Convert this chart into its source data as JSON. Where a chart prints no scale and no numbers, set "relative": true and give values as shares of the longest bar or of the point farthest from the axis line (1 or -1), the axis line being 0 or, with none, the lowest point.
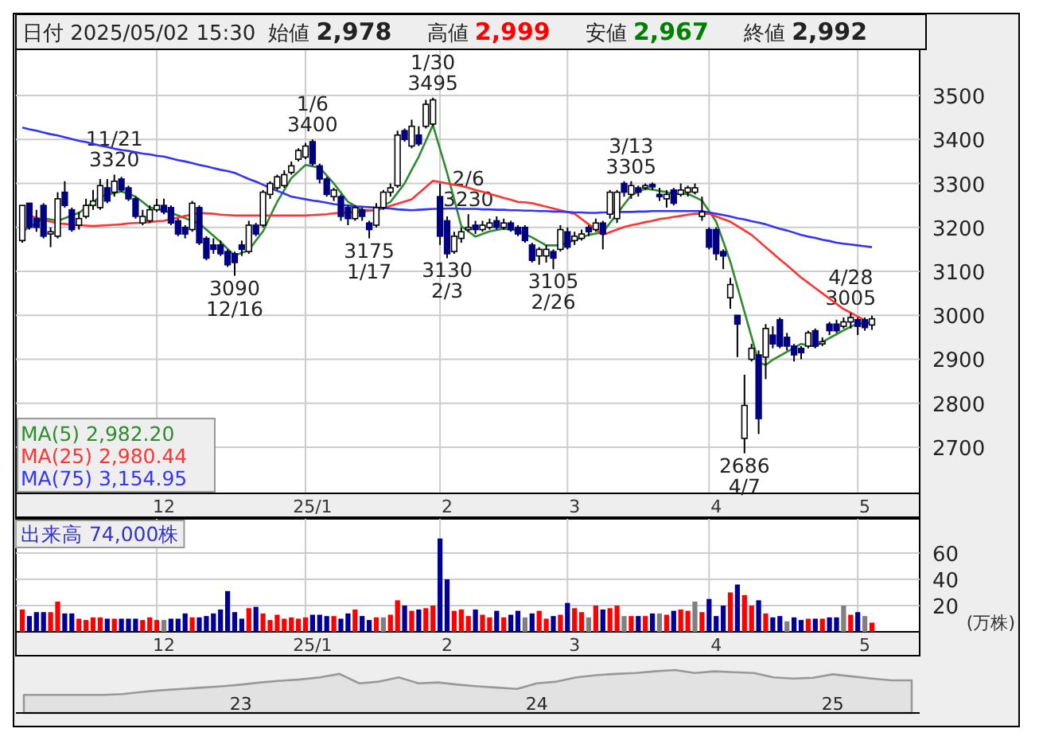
{
  "chart_data": [
    {
      "type": "candlestick",
      "title": "日付 2025/05/02 15:30",
      "annotations": [
        "始値 **2,978**",
        "高値 **2,999**",
        "安値 **2,967**",
        "終値 **2,992**"
      ],
      "categories": [
        null,
        null,
        null,
        null,
        null,
        null,
        null,
        null,
        null,
        null,
        null,
        null,
        null,
        null,
        null,
        null,
        null,
        null,
        null,
        null,
        "12",
        null,
        null,
        null,
        null,
        null,
        null,
        null,
        null,
        null,
        null,
        null,
        null,
        null,
        null,
        null,
        null,
        null,
        null,
        null,
        null,
        "25/1",
        null,
        null,
        null,
        null,
        null,
        null,
        null,
        null,
        null,
        null,
        null,
        null,
        null,
        null,
        null,
        null,
        null,
        null,
        "2",
        null,
        null,
        null,
        null,
        null,
        null,
        null,
        null,
        null,
        null,
        null,
        null,
        null,
        null,
        null,
        null,
        null,
        "3",
        null,
        null,
        null,
        null,
        null,
        null,
        null,
        null,
        null,
        null,
        null,
        null,
        null,
        null,
        null,
        null,
        null,
        null,
        null,
        "4",
        null,
        null,
        null,
        null,
        null,
        null,
        null,
        null,
        null,
        null,
        null,
        null,
        null,
        null,
        null,
        null,
        null,
        null,
        null,
        null,
        "5",
        null
      ],
      "ohlc": [
        [
          3170,
          3250,
          3165,
          3250
        ],
        [
          3255,
          3255,
          3195,
          3200
        ],
        [
          3220,
          3240,
          3190,
          3200
        ],
        [
          3250,
          3255,
          3175,
          3180
        ],
        [
          3185,
          3200,
          3155,
          3190
        ],
        [
          3180,
          3280,
          3175,
          3265
        ],
        [
          3280,
          3305,
          3245,
          3250
        ],
        [
          3240,
          3245,
          3190,
          3195
        ],
        [
          3205,
          3235,
          3195,
          3220
        ],
        [
          3225,
          3265,
          3220,
          3250
        ],
        [
          3250,
          3285,
          3240,
          3260
        ],
        [
          3245,
          3310,
          3240,
          3295
        ],
        [
          3290,
          3310,
          3255,
          3260
        ],
        [
          3280,
          3320,
          3270,
          3305
        ],
        [
          3310,
          3315,
          3280,
          3285
        ],
        [
          3290,
          3295,
          3260,
          3265
        ],
        [
          3265,
          3270,
          3220,
          3225
        ],
        [
          3210,
          3240,
          3205,
          3225
        ],
        [
          3215,
          3250,
          3210,
          3240
        ],
        [
          3240,
          3265,
          3235,
          3250
        ],
        [
          3250,
          3265,
          3230,
          3235
        ],
        [
          3245,
          3250,
          3205,
          3210
        ],
        [
          3215,
          3220,
          3180,
          3185
        ],
        [
          3200,
          3205,
          3175,
          3185
        ],
        [
          3195,
          3260,
          3190,
          3255
        ],
        [
          3245,
          3250,
          3160,
          3165
        ],
        [
          3175,
          3180,
          3125,
          3130
        ],
        [
          3160,
          3175,
          3140,
          3150
        ],
        [
          3160,
          3170,
          3135,
          3140
        ],
        [
          3145,
          3150,
          3110,
          3115
        ],
        [
          3140,
          3145,
          3090,
          3120
        ],
        [
          3160,
          3170,
          3135,
          3150
        ],
        [
          3145,
          3215,
          3140,
          3205
        ],
        [
          3205,
          3210,
          3180,
          3185
        ],
        [
          3205,
          3285,
          3200,
          3280
        ],
        [
          3275,
          3305,
          3265,
          3300
        ],
        [
          3290,
          3320,
          3285,
          3315
        ],
        [
          3295,
          3330,
          3290,
          3320
        ],
        [
          3325,
          3350,
          3320,
          3340
        ],
        [
          3355,
          3380,
          3350,
          3375
        ],
        [
          3360,
          3392,
          3355,
          3385
        ],
        [
          3395,
          3400,
          3340,
          3345
        ],
        [
          3340,
          3345,
          3300,
          3310
        ],
        [
          3310,
          3315,
          3270,
          3275
        ],
        [
          3270,
          3290,
          3260,
          3285
        ],
        [
          3270,
          3275,
          3215,
          3225
        ],
        [
          3245,
          3250,
          3205,
          3220
        ],
        [
          3220,
          3250,
          3215,
          3245
        ],
        [
          3240,
          3245,
          3215,
          3225
        ],
        [
          3210,
          3215,
          3175,
          3195
        ],
        [
          3205,
          3255,
          3200,
          3245
        ],
        [
          3245,
          3285,
          3240,
          3280
        ],
        [
          3280,
          3300,
          3270,
          3290
        ],
        [
          3295,
          3420,
          3290,
          3410
        ],
        [
          3420,
          3425,
          3395,
          3400
        ],
        [
          3385,
          3445,
          3380,
          3430
        ],
        [
          3410,
          3430,
          3385,
          3390
        ],
        [
          3430,
          3490,
          3425,
          3480
        ],
        [
          3435,
          3495,
          3430,
          3490
        ],
        [
          3270,
          3300,
          3160,
          3180
        ],
        [
          3215,
          3225,
          3130,
          3140
        ],
        [
          3145,
          3190,
          3140,
          3180
        ],
        [
          3175,
          3200,
          3165,
          3190
        ],
        [
          3195,
          3230,
          3190,
          3200
        ],
        [
          3205,
          3215,
          3185,
          3195
        ],
        [
          3195,
          3215,
          3190,
          3205
        ],
        [
          3200,
          3220,
          3195,
          3210
        ],
        [
          3215,
          3225,
          3195,
          3200
        ],
        [
          3200,
          3220,
          3195,
          3210
        ],
        [
          3210,
          3215,
          3190,
          3195
        ],
        [
          3200,
          3205,
          3180,
          3185
        ],
        [
          3200,
          3205,
          3165,
          3170
        ],
        [
          3160,
          3165,
          3120,
          3125
        ],
        [
          3135,
          3155,
          3115,
          3150
        ],
        [
          3135,
          3160,
          3120,
          3150
        ],
        [
          3145,
          3150,
          3105,
          3130
        ],
        [
          3150,
          3205,
          3145,
          3195
        ],
        [
          3190,
          3200,
          3150,
          3155
        ],
        [
          3170,
          3190,
          3160,
          3180
        ],
        [
          3175,
          3195,
          3170,
          3185
        ],
        [
          3200,
          3205,
          3180,
          3190
        ],
        [
          3195,
          3220,
          3190,
          3210
        ],
        [
          3210,
          3215,
          3150,
          3185
        ],
        [
          3230,
          3285,
          3220,
          3280
        ],
        [
          3220,
          3285,
          3210,
          3280
        ],
        [
          3300,
          3305,
          3270,
          3280
        ],
        [
          3275,
          3305,
          3265,
          3295
        ],
        [
          3290,
          3295,
          3270,
          3280
        ],
        [
          3290,
          3300,
          3285,
          3295
        ],
        [
          3298,
          3302,
          3285,
          3292
        ],
        [
          3275,
          3290,
          3260,
          3270
        ],
        [
          3265,
          3285,
          3245,
          3275
        ],
        [
          3285,
          3290,
          3250,
          3255
        ],
        [
          3275,
          3300,
          3270,
          3285
        ],
        [
          3280,
          3295,
          3270,
          3290
        ],
        [
          3280,
          3300,
          3275,
          3290
        ],
        [
          3225,
          3270,
          3215,
          3235
        ],
        [
          3195,
          3200,
          3150,
          3155
        ],
        [
          3195,
          3200,
          3125,
          3140
        ],
        [
          3145,
          3150,
          3105,
          3135
        ],
        [
          3040,
          3085,
          3015,
          3070
        ],
        [
          3000,
          3000,
          2905,
          2980
        ],
        [
          2720,
          2865,
          2686,
          2795
        ],
        [
          2900,
          2935,
          2895,
          2925
        ],
        [
          2910,
          2920,
          2730,
          2765
        ],
        [
          2905,
          2980,
          2855,
          2970
        ],
        [
          2955,
          2975,
          2925,
          2935
        ],
        [
          2990,
          2995,
          2925,
          2930
        ],
        [
          2950,
          2960,
          2920,
          2930
        ],
        [
          2930,
          2935,
          2895,
          2910
        ],
        [
          2925,
          2930,
          2900,
          2915
        ],
        [
          2930,
          2965,
          2925,
          2960
        ],
        [
          2965,
          2970,
          2925,
          2930
        ],
        [
          2935,
          2950,
          2930,
          2940
        ],
        [
          2980,
          2985,
          2955,
          2965
        ],
        [
          2980,
          2990,
          2960,
          2965
        ],
        [
          2975,
          2995,
          2970,
          2985
        ],
        [
          2985,
          3005,
          2970,
          2995
        ],
        [
          2990,
          2995,
          2955,
          2975
        ],
        [
          2990,
          2995,
          2965,
          2972
        ],
        [
          2978,
          2999,
          2967,
          2992
        ]
      ],
      "value_labels": [
        null,
        null,
        null,
        null,
        null,
        null,
        null,
        null,
        null,
        null,
        null,
        null,
        null,
        "11/21\n3320",
        null,
        null,
        null,
        null,
        null,
        null,
        null,
        null,
        null,
        null,
        null,
        null,
        null,
        null,
        null,
        null,
        "3090\n12/16",
        null,
        null,
        null,
        null,
        null,
        null,
        null,
        null,
        null,
        null,
        "1/6\n3400",
        null,
        null,
        null,
        null,
        null,
        null,
        null,
        "3175\n1/17",
        null,
        null,
        null,
        null,
        null,
        null,
        null,
        null,
        "1/30\n3495",
        null,
        "3130\n2/3",
        null,
        null,
        "2/6\n3230",
        null,
        null,
        null,
        null,
        null,
        null,
        null,
        null,
        null,
        null,
        null,
        "3105\n2/26",
        null,
        null,
        null,
        null,
        null,
        null,
        null,
        null,
        null,
        null,
        "3/13\n3305",
        null,
        null,
        null,
        null,
        null,
        null,
        null,
        null,
        null,
        null,
        null,
        null,
        null,
        null,
        null,
        "2686\n4/7",
        null,
        null,
        null,
        null,
        null,
        null,
        null,
        null,
        null,
        null,
        null,
        null,
        null,
        null,
        "4/28\n3005",
        null,
        null,
        null
      ],
      "series": [
        {
          "name": "MA(5)      2,982.20",
          "type": "line",
          "color": "#2e8b2e",
          "values": [
            3191,
            3200,
            3210,
            3221,
            3218,
            3215,
            3221,
            3227,
            3233,
            3245,
            3258,
            3270,
            3274,
            3278,
            3282,
            3276,
            3270,
            3258,
            3245,
            3242,
            3239,
            3233,
            3227,
            3221,
            3215,
            3209,
            3195,
            3181,
            3167,
            3151,
            3136,
            3142,
            3148,
            3170,
            3191,
            3225,
            3258,
            3285,
            3312,
            3327,
            3342,
            3339,
            3336,
            3318,
            3300,
            3279,
            3258,
            3249,
            3239,
            3239,
            3239,
            3249,
            3258,
            3279,
            3300,
            3331,
            3361,
            3397,
            3433,
            3378,
            3324,
            3264,
            3203,
            3191,
            3179,
            3185,
            3191,
            3194,
            3197,
            3195,
            3193,
            3185,
            3177,
            3168,
            3159,
            3159,
            3159,
            3165,
            3171,
            3177,
            3183,
            3186,
            3189,
            3210,
            3231,
            3252,
            3273,
            3281,
            3288,
            3286,
            3283,
            3280,
            3276,
            3276,
            3276,
            3269,
            3261,
            3237,
            3213,
            3168,
            3122,
            3065,
            3008,
            2951,
            2893,
            2887,
            2899,
            2908,
            2917,
            2926,
            2935,
            2932,
            2929,
            2939,
            2948,
            2957,
            2966,
            2974,
            2981,
            2982,
            2982
          ]
        },
        {
          "name": "MA(25)    2,980.44",
          "type": "line",
          "color": "#ff3333",
          "values": [
            null,
            3226,
            3222,
            3217,
            3213,
            3209,
            3208,
            3206,
            3205,
            3204,
            3203,
            3204,
            3205,
            3206,
            3207,
            3209,
            3210,
            3211,
            3212,
            3214,
            3215,
            3219,
            3222,
            3226,
            3229,
            3233,
            3232,
            3231,
            3229,
            3228,
            3227,
            3227,
            3227,
            3227,
            3227,
            3227,
            3227,
            3227,
            3227,
            3227,
            3227,
            3228,
            3229,
            3230,
            3232,
            3233,
            3234,
            3235,
            3236,
            3238,
            3239,
            3244,
            3249,
            3254,
            3259,
            3264,
            3278,
            3292,
            3306,
            3303,
            3300,
            3297,
            3294,
            3290,
            3285,
            3281,
            3276,
            3272,
            3267,
            3263,
            3258,
            3257,
            3255,
            3251,
            3247,
            3243,
            3239,
            3235,
            3231,
            3219,
            3207,
            3195,
            3183,
            3189,
            3195,
            3201,
            3205,
            3208,
            3212,
            3215,
            3219,
            3221,
            3224,
            3226,
            3229,
            3231,
            3231,
            3231,
            3225,
            3219,
            3213,
            3203,
            3193,
            3183,
            3169,
            3155,
            3141,
            3127,
            3114,
            3100,
            3086,
            3074,
            3062,
            3050,
            3038,
            3026,
            3014,
            3006,
            2997,
            2989,
            2980
          ]
        },
        {
          "name": "MA(75)    3,154.95",
          "type": "line",
          "color": "#3333ff",
          "values": [
            3427,
            3423,
            3420,
            3416,
            3412,
            3409,
            3405,
            3401,
            3397,
            3394,
            3390,
            3386,
            3383,
            3379,
            3376,
            3374,
            3371,
            3368,
            3366,
            3363,
            3361,
            3357,
            3353,
            3350,
            3346,
            3342,
            3339,
            3335,
            3331,
            3328,
            3324,
            3317,
            3310,
            3304,
            3297,
            3290,
            3283,
            3277,
            3270,
            3267,
            3264,
            3261,
            3259,
            3256,
            3253,
            3251,
            3250,
            3248,
            3247,
            3246,
            3245,
            3244,
            3243,
            3241,
            3240,
            3239,
            3240,
            3241,
            3242,
            3242,
            3243,
            3243,
            3242,
            3242,
            3242,
            3241,
            3241,
            3240,
            3240,
            3239,
            3239,
            3238,
            3238,
            3237,
            3237,
            3236,
            3236,
            3235,
            3234,
            3234,
            3233,
            3233,
            3234,
            3234,
            3235,
            3235,
            3235,
            3236,
            3236,
            3237,
            3237,
            3237,
            3237,
            3237,
            3237,
            3237,
            3237,
            3234,
            3231,
            3228,
            3225,
            3221,
            3218,
            3214,
            3211,
            3207,
            3202,
            3197,
            3193,
            3188,
            3183,
            3179,
            3176,
            3172,
            3169,
            3165,
            3163,
            3161,
            3159,
            3157,
            3155
          ]
        }
      ],
      "ylim": [
        2595,
        3605
      ],
      "yticks": [
        2700,
        2800,
        2900,
        3000,
        3100,
        3200,
        3300,
        3400,
        3500
      ],
      "grid": true,
      "legend": "bottom left"
    },
    {
      "type": "bar",
      "annotations": [
        "出来高 74,000株"
      ],
      "ylabel": "(万株)",
      "categories": [
        null,
        null,
        null,
        null,
        null,
        null,
        null,
        null,
        null,
        null,
        null,
        null,
        null,
        null,
        null,
        null,
        null,
        null,
        null,
        null,
        "12",
        null,
        null,
        null,
        null,
        null,
        null,
        null,
        null,
        null,
        null,
        null,
        null,
        null,
        null,
        null,
        null,
        null,
        null,
        null,
        null,
        "25/1",
        null,
        null,
        null,
        null,
        null,
        null,
        null,
        null,
        null,
        null,
        null,
        null,
        null,
        null,
        null,
        null,
        null,
        null,
        "2",
        null,
        null,
        null,
        null,
        null,
        null,
        null,
        null,
        null,
        null,
        null,
        null,
        null,
        null,
        null,
        null,
        null,
        "3",
        null,
        null,
        null,
        null,
        null,
        null,
        null,
        null,
        null,
        null,
        null,
        null,
        null,
        null,
        null,
        null,
        null,
        null,
        null,
        "4",
        null,
        null,
        null,
        null,
        null,
        null,
        null,
        null,
        null,
        null,
        null,
        null,
        null,
        null,
        null,
        null,
        null,
        null,
        null,
        null,
        "5",
        null
      ],
      "values": [
        17,
        12,
        15,
        15,
        15,
        23,
        14,
        14,
        10,
        9,
        11,
        11,
        10,
        10,
        10,
        10,
        10,
        9,
        11,
        9,
        9,
        10,
        10,
        14,
        11,
        11,
        12,
        14,
        17,
        31,
        15,
        10,
        18,
        19,
        14,
        9,
        13,
        10,
        11,
        10,
        11,
        13,
        13,
        12,
        12,
        10,
        14,
        17,
        12,
        9,
        11,
        11,
        13,
        24,
        20,
        16,
        17,
        18,
        20,
        71,
        40,
        16,
        17,
        12,
        17,
        13,
        11,
        16,
        11,
        13,
        16,
        11,
        14,
        16,
        10,
        12,
        13,
        22,
        18,
        15,
        11,
        20,
        17,
        18,
        20,
        12,
        12,
        12,
        12,
        14,
        14,
        13,
        16,
        17,
        16,
        23,
        15,
        25,
        12,
        20,
        30,
        36,
        28,
        20,
        24,
        14,
        11,
        12,
        8,
        11,
        9,
        10,
        10,
        10,
        11,
        11,
        20,
        13,
        15,
        12,
        7
      ],
      "colors": [
        "#ff0000",
        "#000099",
        "#000099",
        "#000099",
        "#ff0000",
        "#ff0000",
        "#000099",
        "#000099",
        "#ff0000",
        "#ff0000",
        "#ff0000",
        "#ff0000",
        "#000099",
        "#ff0000",
        "#000099",
        "#000099",
        "#000099",
        "#ff0000",
        "#ff0000",
        "#ff0000",
        "#808080",
        "#000099",
        "#000099",
        "#000099",
        "#ff0000",
        "#000099",
        "#000099",
        "#000099",
        "#000099",
        "#000099",
        "#000099",
        "#000099",
        "#ff0000",
        "#000099",
        "#ff0000",
        "#ff0000",
        "#ff0000",
        "#ff0000",
        "#ff0000",
        "#ff0000",
        "#ff0000",
        "#000099",
        "#000099",
        "#000099",
        "#ff0000",
        "#000099",
        "#000099",
        "#ff0000",
        "#000099",
        "#000099",
        "#ff0000",
        "#808080",
        "#ff0000",
        "#ff0000",
        "#000099",
        "#ff0000",
        "#000099",
        "#ff0000",
        "#ff0000",
        "#000099",
        "#000099",
        "#ff0000",
        "#ff0000",
        "#ff0000",
        "#000099",
        "#ff0000",
        "#ff0000",
        "#000099",
        "#ff0000",
        "#000099",
        "#000099",
        "#808080",
        "#000099",
        "#ff0000",
        "#ff0000",
        "#000099",
        "#ff0000",
        "#000099",
        "#ff0000",
        "#ff0000",
        "#808080",
        "#ff0000",
        "#000099",
        "#ff0000",
        "#ff0000",
        "#808080",
        "#ff0000",
        "#000099",
        "#ff0000",
        "#000099",
        "#808080",
        "#ff0000",
        "#000099",
        "#ff0000",
        "#ff0000",
        "#808080",
        "#ff0000",
        "#000099",
        "#000099",
        "#000099",
        "#ff0000",
        "#000099",
        "#ff0000",
        "#ff0000",
        "#000099",
        "#ff0000",
        "#000099",
        "#000099",
        "#808080",
        "#000099",
        "#000099",
        "#ff0000",
        "#000099",
        "#ff0000",
        "#000099",
        "#000099",
        "#808080",
        "#ff0000",
        "#000099",
        "#808080",
        "#ff0000"
      ],
      "ylim": [
        0,
        86
      ],
      "yticks": [
        20,
        40,
        60
      ],
      "grid": true
    },
    {
      "type": "area",
      "relative": true,
      "color": "#999999",
      "categories": [
        null,
        null,
        null,
        null,
        null,
        null,
        null,
        null,
        null,
        null,
        null,
        "23",
        null,
        null,
        null,
        null,
        null,
        null,
        null,
        null,
        null,
        null,
        null,
        null,
        null,
        null,
        "24",
        null,
        null,
        null,
        null,
        null,
        null,
        null,
        null,
        null,
        null,
        null,
        null,
        null,
        null,
        "25",
        null,
        null,
        null,
        null
      ],
      "values": [
        0.42,
        0.42,
        0.42,
        0.42,
        0.42,
        0.44,
        0.49,
        0.53,
        0.56,
        0.59,
        0.62,
        0.66,
        0.71,
        0.75,
        0.78,
        0.83,
        0.91,
        0.69,
        0.73,
        0.83,
        0.69,
        0.71,
        0.66,
        0.62,
        0.59,
        0.56,
        0.69,
        0.73,
        0.83,
        0.88,
        0.91,
        0.93,
        0.97,
        1,
        0.93,
        0.97,
        0.95,
        0.93,
        0.83,
        0.8,
        0.82,
        0.9,
        0.85,
        0.8,
        0.76,
        0.76
      ]
    }
  ]
}
